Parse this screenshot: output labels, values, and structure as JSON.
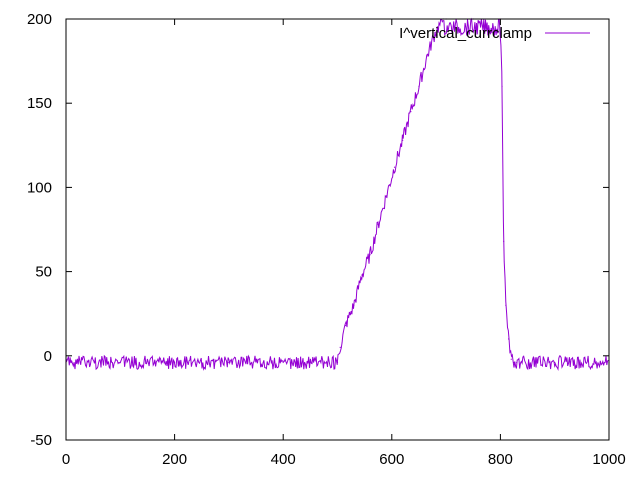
{
  "chart_data": {
    "type": "line",
    "title": "",
    "xlabel": "",
    "ylabel": "",
    "xlim": [
      0,
      1000
    ],
    "ylim": [
      -50,
      200
    ],
    "xticks": [
      0,
      200,
      400,
      600,
      800,
      1000
    ],
    "yticks": [
      -50,
      0,
      50,
      100,
      150,
      200
    ],
    "grid": false,
    "legend_position": "top-right",
    "series": [
      {
        "name": "I^vertical_currclamp",
        "color": "#9400d3",
        "x": [
          0,
          100,
          200,
          300,
          400,
          500,
          505,
          515,
          530,
          545,
          560,
          575,
          590,
          605,
          620,
          635,
          650,
          665,
          680,
          695,
          700,
          750,
          800,
          803,
          806,
          810,
          815,
          820,
          825,
          830,
          900,
          1000
        ],
        "y": [
          -4,
          -4,
          -4,
          -4,
          -4,
          -4,
          5,
          18,
          30,
          48,
          60,
          78,
          95,
          112,
          128,
          145,
          160,
          178,
          192,
          200,
          200,
          200,
          200,
          160,
          68,
          30,
          10,
          -2,
          -4,
          -4,
          -4,
          -4
        ]
      }
    ]
  }
}
